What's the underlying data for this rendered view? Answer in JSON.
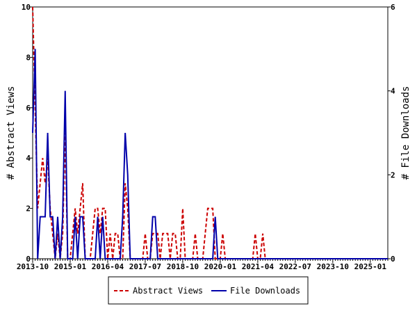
{
  "chart_data": {
    "type": "line",
    "categories": [
      "2013-10",
      null,
      null,
      null,
      null,
      null,
      null,
      null,
      null,
      null,
      null,
      null,
      null,
      null,
      null,
      "2015-01",
      null,
      null,
      null,
      null,
      null,
      null,
      null,
      null,
      null,
      null,
      null,
      null,
      null,
      null,
      "2016-04",
      null,
      null,
      null,
      null,
      null,
      null,
      null,
      null,
      null,
      null,
      null,
      null,
      null,
      null,
      "2017-07",
      null,
      null,
      null,
      null,
      null,
      null,
      null,
      null,
      null,
      null,
      null,
      null,
      null,
      null,
      "2018-10",
      null,
      null,
      null,
      null,
      null,
      null,
      null,
      null,
      null,
      null,
      null,
      null,
      null,
      null,
      "2020-01",
      null,
      null,
      null,
      null,
      null,
      null,
      null,
      null,
      null,
      null,
      null,
      null,
      null,
      null,
      "2021-04",
      null,
      null,
      null,
      null,
      null,
      null,
      null,
      null,
      null,
      null,
      null,
      null,
      null,
      null,
      "2022-07",
      null,
      null,
      null,
      null,
      null,
      null,
      null,
      null,
      null,
      null,
      null,
      null,
      null,
      null,
      "2023-10",
      null,
      null,
      null,
      null,
      null,
      null,
      null,
      null,
      null,
      null,
      null,
      null,
      null,
      null,
      "2025-01",
      null,
      null,
      null,
      null,
      null,
      null,
      null
    ],
    "series": [
      {
        "name": "Abstract Views",
        "color": "#cc0000",
        "dash": true,
        "axis": "y",
        "values": [
          10,
          6,
          2,
          3,
          4,
          3,
          4,
          2,
          1,
          0,
          1,
          0,
          1,
          5,
          0,
          0,
          1,
          2,
          1,
          2,
          3,
          0,
          0,
          0,
          1,
          2,
          2,
          1,
          2,
          2,
          0,
          1,
          0,
          1,
          1,
          0,
          0,
          3,
          2,
          0,
          0,
          0,
          0,
          0,
          0,
          1,
          0,
          0,
          1,
          1,
          1,
          0,
          1,
          1,
          1,
          0,
          1,
          1,
          0,
          0,
          2,
          0,
          0,
          0,
          0,
          1,
          0,
          0,
          0,
          1,
          2,
          2,
          2,
          0,
          0,
          0,
          1,
          0,
          0,
          0,
          0,
          0,
          0,
          0,
          0,
          0,
          0,
          0,
          0,
          1,
          0,
          0,
          1,
          0,
          0,
          0,
          0,
          0,
          0,
          0,
          0,
          0,
          0,
          0,
          0,
          0,
          0,
          0,
          0,
          0,
          0,
          0,
          0,
          0,
          0,
          0,
          0,
          0,
          0,
          0,
          0,
          0,
          0,
          0,
          0,
          0,
          0,
          0,
          0,
          0,
          0,
          0,
          0,
          0,
          0,
          0,
          0,
          0,
          0,
          0,
          0,
          0,
          0
        ]
      },
      {
        "name": "File Downloads",
        "color": "#0000aa",
        "dash": false,
        "axis": "y2",
        "values": [
          3,
          5,
          0,
          1,
          1,
          1,
          3,
          1,
          1,
          0,
          1,
          0,
          1,
          4,
          0,
          0,
          0,
          1,
          0,
          1,
          1,
          0,
          0,
          0,
          0,
          0,
          1,
          0,
          1,
          0,
          0,
          0,
          0,
          0,
          0,
          0,
          1,
          3,
          2,
          0,
          0,
          0,
          0,
          0,
          0,
          0,
          0,
          0,
          1,
          1,
          0,
          0,
          0,
          0,
          0,
          0,
          0,
          0,
          0,
          0,
          0,
          0,
          0,
          0,
          0,
          0,
          0,
          0,
          0,
          0,
          0,
          0,
          0,
          1,
          0,
          0,
          0,
          0,
          0,
          0,
          0,
          0,
          0,
          0,
          0,
          0,
          0,
          0,
          0,
          0,
          0,
          0,
          0,
          0,
          0,
          0,
          0,
          0,
          0,
          0,
          0,
          0,
          0,
          0,
          0,
          0,
          0,
          0,
          0,
          0,
          0,
          0,
          0,
          0,
          0,
          0,
          0,
          0,
          0,
          0,
          0,
          0,
          0,
          0,
          0,
          0,
          0,
          0,
          0,
          0,
          0,
          0,
          0,
          0,
          0,
          0,
          0,
          0,
          0,
          0,
          0,
          0,
          0
        ]
      }
    ],
    "ylabel": "# Abstract Views",
    "y2label": "# File Downloads",
    "ylim": [
      0,
      10
    ],
    "yticks": [
      0,
      2,
      4,
      6,
      8,
      10
    ],
    "y2lim": [
      0,
      6
    ],
    "y2ticks": [
      0,
      2,
      4,
      6
    ],
    "legend": "bottom"
  }
}
